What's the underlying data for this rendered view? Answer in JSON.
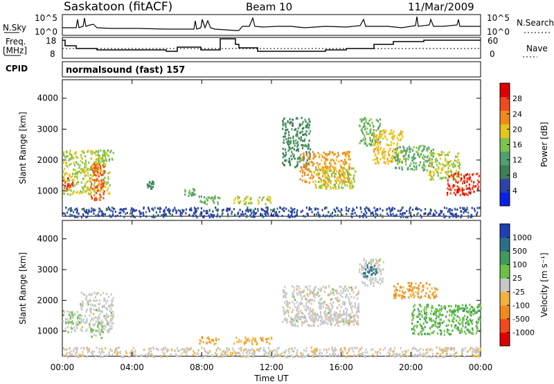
{
  "header": {
    "station": "Saskatoon (fitACF)",
    "beam": "Beam 10",
    "date": "11/Mar/2009"
  },
  "strip": {
    "nsky_label": "N.Sky",
    "nsky_ticks": [
      "10^5",
      "10^0"
    ],
    "nsearch_label": "N.Search",
    "nsearch_ticks": [
      "10^5",
      "10^0"
    ],
    "freq_label_1": "Freq.",
    "freq_label_2": "[MHz]",
    "freq_ticks": [
      "18",
      "8"
    ],
    "nave_label": "Nave",
    "nave_ticks": [
      "60",
      "0"
    ],
    "cpid_label": "CPID",
    "cpid_value": "normalsound (fast) 157"
  },
  "colors": {
    "power_scale": [
      "#0b1fe8",
      "#2c43a8",
      "#3e7e55",
      "#4fa06a",
      "#7ec24a",
      "#e7c51a",
      "#f08a1e",
      "#ef4a1e",
      "#e00000"
    ],
    "velocity_scale": [
      "#e00000",
      "#f04a1e",
      "#f08a1e",
      "#f3b23a",
      "#c8c8c8",
      "#6bc146",
      "#3f9b5a",
      "#2c6f8a",
      "#1f3fb4"
    ]
  },
  "chart_data": [
    {
      "type": "heatmap",
      "title": "Power",
      "ylabel": "Slant Range [km]",
      "xlabel": "Time UT",
      "x_tick_labels": [
        "00:00",
        "04:00",
        "08:00",
        "12:00",
        "16:00",
        "20:00",
        "00:00"
      ],
      "y_tick_labels": [
        "1000",
        "2000",
        "3000",
        "4000"
      ],
      "ylim": [
        180,
        4600
      ],
      "xlim_hours": [
        0,
        24
      ],
      "colorbar_label": "Power [dB]",
      "colorbar_ticks": [
        "28",
        "24",
        "20",
        "16",
        "12",
        "8",
        "4"
      ],
      "colorbar_range": [
        0,
        32
      ],
      "scatter_regions": [
        {
          "t": [
            0.0,
            2.7
          ],
          "range": [
            900,
            2350
          ],
          "value": 18
        },
        {
          "t": [
            0.0,
            0.6
          ],
          "range": [
            1050,
            1450
          ],
          "value": 28
        },
        {
          "t": [
            1.6,
            2.4
          ],
          "range": [
            700,
            1900
          ],
          "value": 26
        },
        {
          "t": [
            2.0,
            2.9
          ],
          "range": [
            2000,
            2350
          ],
          "value": 16
        },
        {
          "t": [
            4.8,
            5.2
          ],
          "range": [
            1100,
            1350
          ],
          "value": 10
        },
        {
          "t": [
            7.0,
            7.6
          ],
          "range": [
            850,
            1100
          ],
          "value": 14
        },
        {
          "t": [
            7.8,
            9.0
          ],
          "range": [
            600,
            900
          ],
          "value": 14
        },
        {
          "t": [
            9.8,
            12.0
          ],
          "range": [
            600,
            850
          ],
          "value": 18
        },
        {
          "t": [
            12.6,
            14.2
          ],
          "range": [
            1800,
            3400
          ],
          "value": 10
        },
        {
          "t": [
            13.6,
            16.5
          ],
          "range": [
            1300,
            2300
          ],
          "value": 22
        },
        {
          "t": [
            14.4,
            16.8
          ],
          "range": [
            1100,
            1800
          ],
          "value": 18
        },
        {
          "t": [
            17.0,
            18.2
          ],
          "range": [
            2500,
            3400
          ],
          "value": 14
        },
        {
          "t": [
            17.8,
            19.5
          ],
          "range": [
            1900,
            3000
          ],
          "value": 20
        },
        {
          "t": [
            19.0,
            21.3
          ],
          "range": [
            1700,
            2500
          ],
          "value": 14
        },
        {
          "t": [
            21.0,
            22.8
          ],
          "range": [
            1400,
            2300
          ],
          "value": 18
        },
        {
          "t": [
            22.0,
            24.0
          ],
          "range": [
            900,
            1600
          ],
          "value": 28
        },
        {
          "t": [
            0.0,
            24.0
          ],
          "range": [
            180,
            500
          ],
          "value": 6
        }
      ]
    },
    {
      "type": "heatmap",
      "title": "Velocity",
      "ylabel": "Slant Range [km]",
      "xlabel": "Time UT",
      "x_tick_labels": [
        "00:00",
        "04:00",
        "08:00",
        "12:00",
        "16:00",
        "20:00",
        "00:00"
      ],
      "y_tick_labels": [
        "1000",
        "2000",
        "3000",
        "4000"
      ],
      "ylim": [
        180,
        4600
      ],
      "xlim_hours": [
        0,
        24
      ],
      "colorbar_label": "Velocity [m s⁻¹]",
      "colorbar_ticks": [
        "1000",
        "500",
        "100",
        "25",
        "-25",
        "-100",
        "-500",
        "-1000"
      ],
      "colorbar_range": [
        -1200,
        1200
      ],
      "scatter_regions": [
        {
          "t": [
            0.0,
            1.0
          ],
          "range": [
            1000,
            1700
          ],
          "value": 150
        },
        {
          "t": [
            1.0,
            2.9
          ],
          "range": [
            1000,
            2300
          ],
          "value": 0
        },
        {
          "t": [
            1.6,
            2.3
          ],
          "range": [
            800,
            1300
          ],
          "value": 150
        },
        {
          "t": [
            7.8,
            9.0
          ],
          "range": [
            600,
            850
          ],
          "value": -400
        },
        {
          "t": [
            9.8,
            12.0
          ],
          "range": [
            600,
            850
          ],
          "value": -300
        },
        {
          "t": [
            12.6,
            17.0
          ],
          "range": [
            1300,
            2500
          ],
          "value": 0
        },
        {
          "t": [
            13.0,
            17.0
          ],
          "range": [
            1200,
            1600
          ],
          "value": 0
        },
        {
          "t": [
            17.0,
            18.4
          ],
          "range": [
            2500,
            3400
          ],
          "value": 0
        },
        {
          "t": [
            17.2,
            18.0
          ],
          "range": [
            2800,
            3200
          ],
          "value": 800
        },
        {
          "t": [
            19.0,
            21.5
          ],
          "range": [
            2100,
            2600
          ],
          "value": -400
        },
        {
          "t": [
            20.0,
            24.0
          ],
          "range": [
            900,
            1900
          ],
          "value": 350
        },
        {
          "t": [
            0.0,
            24.0
          ],
          "range": [
            180,
            500
          ],
          "value": -60
        }
      ]
    }
  ]
}
